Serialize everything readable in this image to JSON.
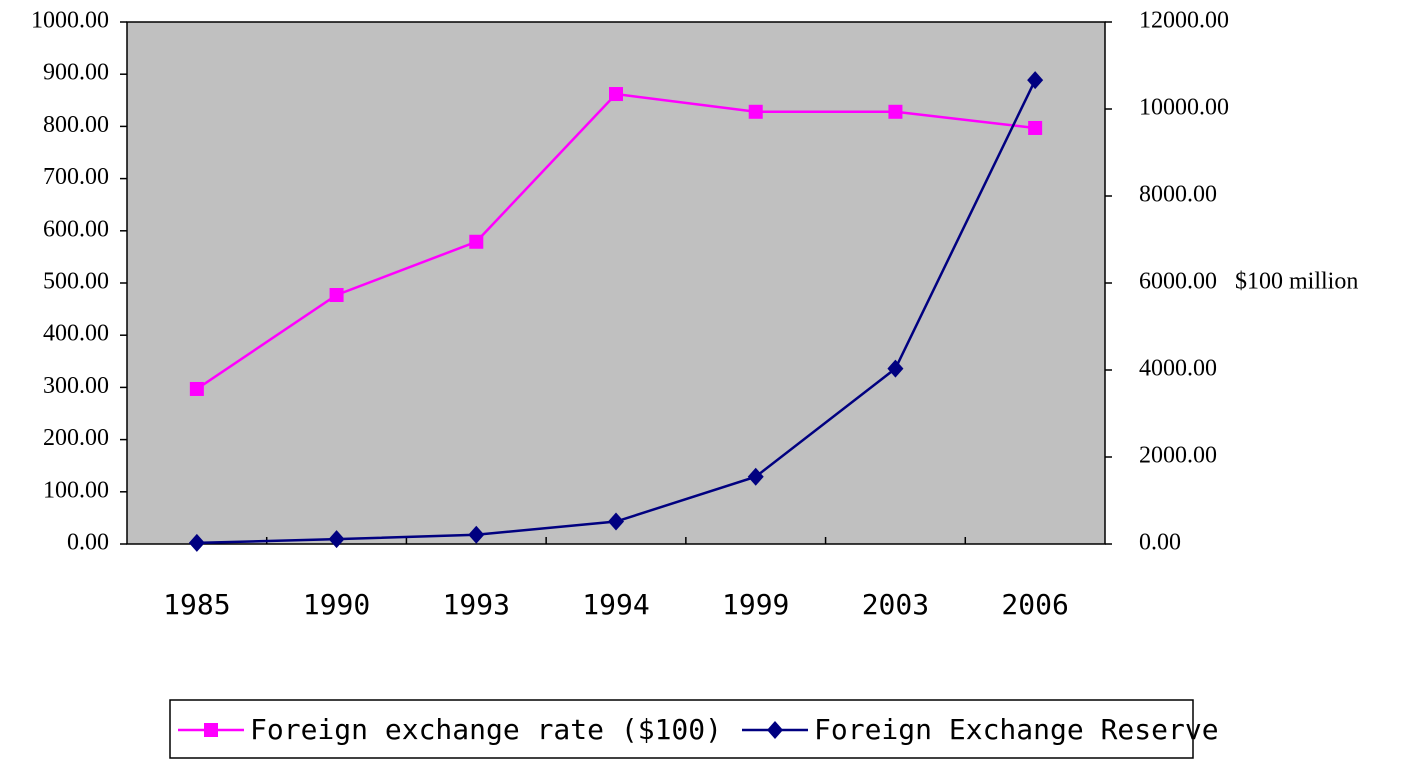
{
  "chart_data": {
    "type": "line",
    "categories": [
      "1985",
      "1990",
      "1993",
      "1994",
      "1999",
      "2003",
      "2006"
    ],
    "series": [
      {
        "name": "Foreign exchange rate ($100)",
        "color": "#ff00ff",
        "marker": "square",
        "values": [
          297,
          477,
          579,
          862,
          828,
          828,
          797
        ]
      },
      {
        "name": "Foreign Exchange Reserve",
        "color": "#000080",
        "marker": "diamond",
        "axis": "y2",
        "values": [
          26,
          111,
          212,
          516,
          1547,
          4033,
          10663
        ]
      }
    ],
    "ylim": [
      0,
      1000
    ],
    "yticks": [
      {
        "value": 0,
        "label": "0.00"
      },
      {
        "value": 100,
        "label": "100.00"
      },
      {
        "value": 200,
        "label": "200.00"
      },
      {
        "value": 300,
        "label": "300.00"
      },
      {
        "value": 400,
        "label": "400.00"
      },
      {
        "value": 500,
        "label": "500.00"
      },
      {
        "value": 600,
        "label": "600.00"
      },
      {
        "value": 700,
        "label": "700.00"
      },
      {
        "value": 800,
        "label": "800.00"
      },
      {
        "value": 900,
        "label": "900.00"
      },
      {
        "value": 1000,
        "label": "1000.00"
      }
    ],
    "y2lim": [
      0,
      12000
    ],
    "y2ticks": [
      {
        "value": 0,
        "label": "0.00"
      },
      {
        "value": 2000,
        "label": "2000.00"
      },
      {
        "value": 4000,
        "label": "4000.00"
      },
      {
        "value": 6000,
        "label": "6000.00"
      },
      {
        "value": 8000,
        "label": "8000.00"
      },
      {
        "value": 10000,
        "label": "10000.00"
      },
      {
        "value": 12000,
        "label": "12000.00"
      }
    ],
    "y2label": "$100 million",
    "legend": "bottom"
  }
}
